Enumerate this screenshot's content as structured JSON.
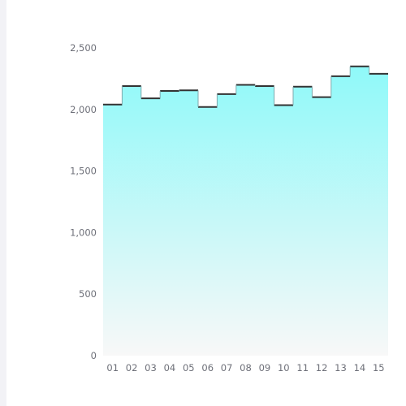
{
  "chart_data": {
    "type": "area",
    "step": "middle",
    "categories": [
      "01",
      "02",
      "03",
      "04",
      "05",
      "06",
      "07",
      "08",
      "09",
      "10",
      "11",
      "12",
      "13",
      "14",
      "15"
    ],
    "series": [
      {
        "values": [
          2040,
          2190,
          2090,
          2150,
          2155,
          2020,
          2125,
          2200,
          2190,
          2035,
          2185,
          2100,
          2270,
          2350,
          2290
        ]
      }
    ],
    "yticks": [
      "0",
      "500",
      "1,000",
      "1,500",
      "2,000",
      "2,500"
    ],
    "ylim": [
      0,
      2500
    ],
    "xlabel": "",
    "ylabel": "",
    "title": "",
    "grid": false,
    "colors": {
      "line": "#333333",
      "fill_top": "#8ff9f9",
      "fill_bottom": "#f8f8f8",
      "tick_text": "#6e7079"
    }
  }
}
